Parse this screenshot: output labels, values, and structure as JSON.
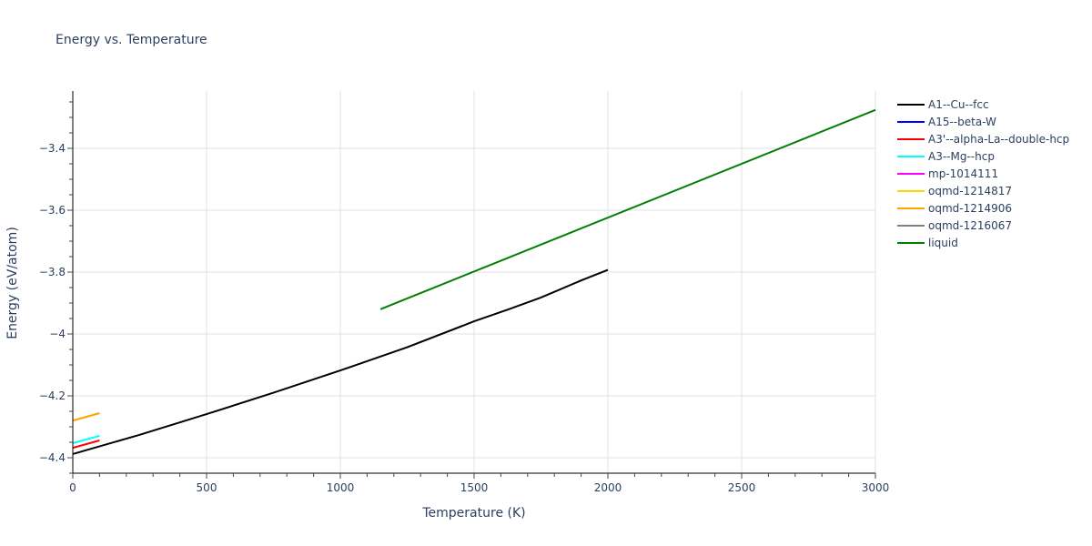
{
  "chart_data": {
    "type": "line",
    "title": "Energy vs. Temperature",
    "xlabel": "Temperature (K)",
    "ylabel": "Energy (eV/atom)",
    "xlim": [
      0,
      3000
    ],
    "ylim": [
      -4.445,
      -3.22
    ],
    "x_ticks": [
      0,
      500,
      1000,
      1500,
      2000,
      2500,
      3000
    ],
    "x_tick_labels": [
      "0",
      "500",
      "1000",
      "1500",
      "2000",
      "2500",
      "3000"
    ],
    "y_ticks": [
      -4.4,
      -4.2,
      -4.0,
      -3.8,
      -3.6,
      -3.4
    ],
    "y_tick_labels": [
      "−4.4",
      "−4.2",
      "−4",
      "−3.8",
      "−3.6",
      "−3.4"
    ],
    "grid": true,
    "legend_position": "right",
    "series": [
      {
        "name": "A1--Cu--fcc",
        "color": "#000000",
        "x": [
          0,
          250,
          500,
          750,
          1000,
          1250,
          1500,
          1630,
          1750,
          1900,
          2000
        ],
        "y": [
          -4.388,
          -4.326,
          -4.259,
          -4.19,
          -4.118,
          -4.043,
          -3.959,
          -3.92,
          -3.882,
          -3.827,
          -3.793
        ]
      },
      {
        "name": "A15--beta-W",
        "color": "#0000ff",
        "x": [],
        "y": []
      },
      {
        "name": "A3'--alpha-La--double-hcp",
        "color": "#ff0000",
        "x": [
          0,
          100
        ],
        "y": [
          -4.368,
          -4.344
        ]
      },
      {
        "name": "A3--Mg--hcp",
        "color": "#00ffff",
        "x": [
          0,
          100
        ],
        "y": [
          -4.353,
          -4.329
        ]
      },
      {
        "name": "mp-1014111",
        "color": "#ff00ff",
        "x": [],
        "y": []
      },
      {
        "name": "oqmd-1214817",
        "color": "#ffd700",
        "x": [
          0,
          100
        ],
        "y": [
          -4.28,
          -4.256
        ]
      },
      {
        "name": "oqmd-1214906",
        "color": "#ffa500",
        "x": [
          0,
          100
        ],
        "y": [
          -4.28,
          -4.256
        ]
      },
      {
        "name": "oqmd-1216067",
        "color": "#808080",
        "x": [],
        "y": []
      },
      {
        "name": "liquid",
        "color": "#008000",
        "x": [
          1150,
          3000
        ],
        "y": [
          -3.92,
          -3.276
        ]
      }
    ]
  }
}
